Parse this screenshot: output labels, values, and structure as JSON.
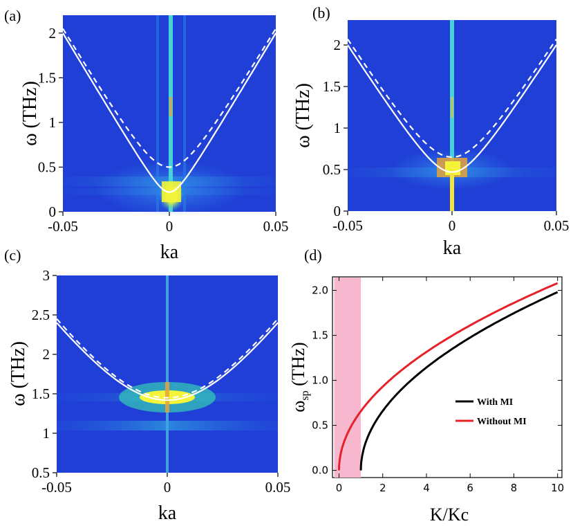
{
  "colors": {
    "heatmap_background": "#1f3fd6",
    "heatmap_glow": "#2f7ae6",
    "heatmap_cyan": "#3ec7e0",
    "heatmap_yellow": "#e8f23a",
    "heatmap_orange": "#e8a23a",
    "dispersion_curve": "#ffffff",
    "with_mi": "#000000",
    "without_mi": "#e8202a",
    "shaded_region": "#f7b8cf"
  },
  "chart_data": [
    {
      "panel": "(a)",
      "type": "heatmap",
      "xlabel": "ka",
      "ylabel": "ω (THz)",
      "xlim": [
        -0.05,
        0.05
      ],
      "ylim": [
        0,
        2.2
      ],
      "xticks": [
        "-0.05",
        "0",
        "0.05"
      ],
      "yticks": [
        "0",
        "0.5",
        "1",
        "1.5",
        "2"
      ],
      "ytick_values": [
        0,
        0.5,
        1,
        1.5,
        2
      ],
      "curves": [
        {
          "name": "solid",
          "style": "solid",
          "gap": 0.22,
          "edge": 2.0
        },
        {
          "name": "dashed",
          "style": "dashed",
          "gap": 0.5,
          "edge": 2.05
        }
      ],
      "hotspot": {
        "omega_low": 0.0,
        "omega_high": 0.35
      }
    },
    {
      "panel": "(b)",
      "type": "heatmap",
      "xlabel": "ka",
      "ylabel": "ω (THz)",
      "xlim": [
        -0.05,
        0.05
      ],
      "ylim": [
        0,
        2.3
      ],
      "xticks": [
        "-0.05",
        "0",
        "0.05"
      ],
      "yticks": [
        "0",
        "0.5",
        "1",
        "1.5",
        "2"
      ],
      "ytick_values": [
        0,
        0.5,
        1,
        1.5,
        2
      ],
      "curves": [
        {
          "name": "solid",
          "style": "solid",
          "gap": 0.47,
          "edge": 2.0
        },
        {
          "name": "dashed",
          "style": "dashed",
          "gap": 0.65,
          "edge": 2.07
        }
      ],
      "hotspot": {
        "omega_low": 0.42,
        "omega_high": 0.62
      }
    },
    {
      "panel": "(c)",
      "type": "heatmap",
      "xlabel": "ka",
      "ylabel": "ω (THz)",
      "xlim": [
        -0.05,
        0.05
      ],
      "ylim": [
        0.5,
        3.0
      ],
      "xticks": [
        "-0.05",
        "0",
        "0.05"
      ],
      "yticks": [
        "0.5",
        "1",
        "1.5",
        "2",
        "2.5",
        "3"
      ],
      "ytick_values": [
        0.5,
        1,
        1.5,
        2,
        2.5,
        3
      ],
      "curves": [
        {
          "name": "solid",
          "style": "solid",
          "gap": 1.42,
          "edge": 2.4
        },
        {
          "name": "dashed",
          "style": "dashed",
          "gap": 1.45,
          "edge": 2.45
        }
      ],
      "hotspot": {
        "omega_low": 1.38,
        "omega_high": 1.52
      }
    },
    {
      "panel": "(d)",
      "type": "line",
      "xlabel": "K/Kc",
      "ylabel": "ωsp (THz)",
      "ylabel_main": "ω",
      "ylabel_sub": "sp",
      "ylabel_unit": " (THz)",
      "xlim": [
        -0.3,
        10.2
      ],
      "ylim": [
        -0.08,
        2.15
      ],
      "xticks": [
        "0",
        "2",
        "4",
        "6",
        "8",
        "10"
      ],
      "xtick_values": [
        0,
        2,
        4,
        6,
        8,
        10
      ],
      "yticks": [
        "0.0",
        "0.5",
        "1.0",
        "1.5",
        "2.0"
      ],
      "ytick_values": [
        0,
        0.5,
        1,
        1.5,
        2
      ],
      "shaded_region": [
        0,
        1
      ],
      "series": [
        {
          "name": "With MI",
          "x": [
            1,
            1.05,
            1.2,
            1.5,
            2,
            3,
            4,
            5,
            6,
            7,
            8,
            9,
            10
          ],
          "values": [
            0,
            0.15,
            0.29,
            0.46,
            0.65,
            0.92,
            1.13,
            1.3,
            1.46,
            1.6,
            1.73,
            1.86,
            1.98
          ]
        },
        {
          "name": "Without MI",
          "x": [
            0,
            0.05,
            0.2,
            0.5,
            1,
            2,
            3,
            4,
            5,
            6,
            7,
            8,
            9,
            10
          ],
          "values": [
            0,
            0.14,
            0.29,
            0.44,
            0.65,
            0.91,
            1.12,
            1.3,
            1.46,
            1.6,
            1.74,
            1.86,
            1.98,
            2.08
          ]
        }
      ],
      "legend": [
        "With MI",
        "Without MI"
      ]
    }
  ]
}
